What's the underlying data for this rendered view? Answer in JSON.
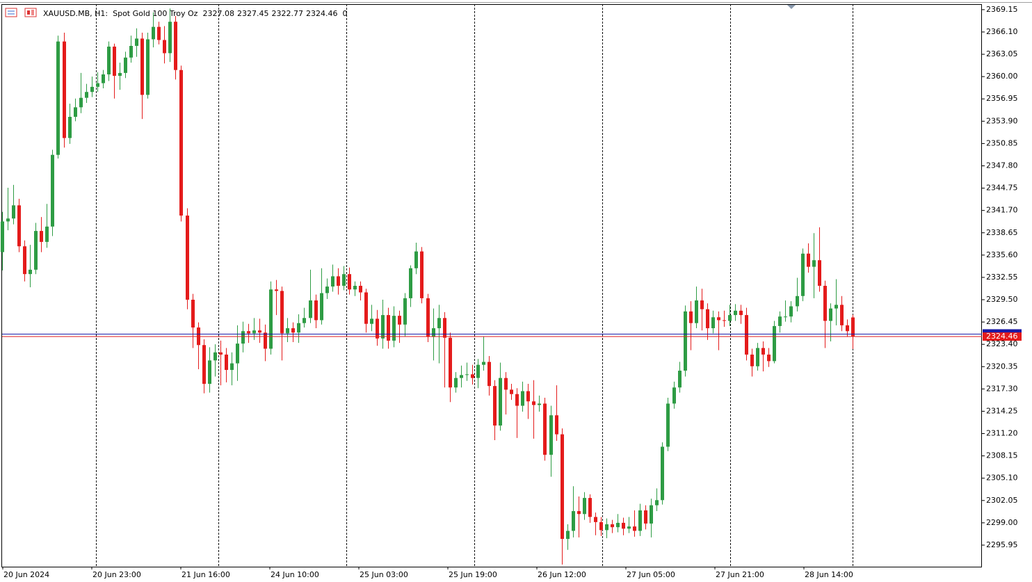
{
  "chart_data": {
    "type": "candlestick",
    "symbol": "XAUUSD.MB, H1:  Spot Gold 100 Troy Oz",
    "spread": 0,
    "up_color": "#2e9c44",
    "down_color": "#e41b1b",
    "bid": 2324.46,
    "bid_color": "#e41b1b",
    "ask": 2324.8,
    "ask_color": "#1a1aa6",
    "ylim": [
      2293.0,
      2369.9
    ],
    "yticks": [
      2369.15,
      {
        "value": 2366.1,
        "label": "2366.10"
      },
      2363.05,
      {
        "value": 2360,
        "label": "2360.00"
      },
      2356.95,
      {
        "value": 2353.9,
        "label": "2353.90"
      },
      2350.85,
      {
        "value": 2347.8,
        "label": "2347.80"
      },
      2344.75,
      {
        "value": 2341.7,
        "label": "2341.70"
      },
      2338.65,
      {
        "value": 2335.6,
        "label": "2335.60"
      },
      2332.55,
      {
        "value": 2329.5,
        "label": "2329.50"
      },
      2326.45,
      {
        "value": 2323.4,
        "label": "2323.40"
      },
      2320.35,
      {
        "value": 2317.3,
        "label": "2317.30"
      },
      2314.25,
      {
        "value": 2311.2,
        "label": "2311.20"
      },
      2308.15,
      {
        "value": 2305.1,
        "label": "2305.10"
      },
      2302.05,
      {
        "value": 2299,
        "label": "2299.00"
      },
      2295.95
    ],
    "xlabels": [
      "20 Jun 2024",
      "20 Jun 23:00",
      "21 Jun 16:00",
      "24 Jun 10:00",
      "25 Jun 03:00",
      "25 Jun 19:00",
      "26 Jun 12:00",
      "27 Jun 05:00",
      "27 Jun 21:00",
      "28 Jun 14:00"
    ],
    "open": [
      2336.0,
      2340.2,
      2340.6,
      2342.4,
      2336.8,
      2333.0,
      2333.6,
      2338.9,
      2337.4,
      2339.5,
      2349.3,
      2364.8,
      2351.6,
      2354.5,
      2355.8,
      2357.1,
      2357.9,
      2358.6,
      2359.1,
      2360.3,
      2364.1,
      2360.1,
      2360.5,
      2362.6,
      2364.2,
      2365.2,
      2357.5,
      2365.1,
      2366.8,
      2365.0,
      2363.2,
      2367.5,
      2360.9,
      2341.0,
      2329.5,
      2325.7,
      2323.3,
      2318.0,
      2321.2,
      2322.3,
      2322.0,
      2319.9,
      2320.8,
      2323.5,
      2325.2,
      2324.9,
      2325.3,
      2325.0,
      2322.8,
      2330.9,
      2330.7,
      2324.9,
      2325.6,
      2325.0,
      2326.3,
      2327.0,
      2329.4,
      2326.7,
      2330.4,
      2331.3,
      2332.7,
      2331.4,
      2333.0,
      2330.9,
      2331.4,
      2330.5,
      2326.2,
      2326.9,
      2324.2,
      2327.4,
      2323.9,
      2327.3,
      2326.1,
      2329.7,
      2333.8,
      2336.1,
      2329.7,
      2324.4,
      2325.6,
      2327.0,
      2324.3,
      2317.5,
      2318.8,
      2319.2,
      2319.3,
      2318.8,
      2320.6,
      2321.0,
      2317.7,
      2312.3,
      2318.8,
      2317.2,
      2316.6,
      2315.0,
      2317.0,
      2315.6,
      2315.1,
      2315.3,
      2308.3,
      2313.7,
      2311.1,
      2296.8,
      2297.9,
      2300.6,
      2300.2,
      2302.4,
      2299.8,
      2299.1,
      2298.0,
      2298.8,
      2298.4,
      2299.0,
      2298.2,
      2298.5,
      2297.9,
      2300.7,
      2298.9,
      2301.4,
      2302.1,
      2309.4,
      2315.3,
      2317.5,
      2319.8,
      2327.9,
      2326.3,
      2329.4,
      2328.2,
      2325.6,
      2327.1,
      2326.7,
      2326.6,
      2327.4,
      2328.0,
      2327.4,
      2322.0,
      2320.4,
      2322.9,
      2322.0,
      2321.1,
      2325.9,
      2327.2,
      2327.2,
      2328.6,
      2330.0,
      2335.8,
      2334.0,
      2334.9,
      2331.4,
      2326.6,
      2328.3,
      2328.8,
      2326.0,
      2327.08
    ],
    "high": [
      2341.5,
      2344.8,
      2345.2,
      2343.3,
      2337.6,
      2337.0,
      2340.0,
      2340.8,
      2342.6,
      2350.0,
      2365.6,
      2366.0,
      2356.3,
      2357.0,
      2360.5,
      2359.0,
      2360.0,
      2360.6,
      2360.9,
      2364.8,
      2364.5,
      2361.9,
      2363.4,
      2365.6,
      2366.6,
      2366.0,
      2366.0,
      2368.8,
      2367.5,
      2366.9,
      2369.3,
      2368.3,
      2361.5,
      2342.0,
      2330.3,
      2326.4,
      2324.1,
      2323.0,
      2323.4,
      2323.9,
      2322.9,
      2322.3,
      2326.0,
      2326.5,
      2326.2,
      2327.0,
      2326.9,
      2326.1,
      2332.0,
      2332.2,
      2331.3,
      2327.0,
      2326.4,
      2327.5,
      2328.4,
      2333.6,
      2330.2,
      2333.8,
      2332.4,
      2334.3,
      2333.8,
      2334.1,
      2333.9,
      2332.0,
      2332.0,
      2331.0,
      2328.8,
      2328.1,
      2329.5,
      2328.4,
      2328.6,
      2328.0,
      2330.4,
      2334.2,
      2337.3,
      2336.7,
      2330.3,
      2328.3,
      2328.8,
      2327.8,
      2325.0,
      2319.6,
      2320.5,
      2320.9,
      2320.6,
      2321.4,
      2324.5,
      2321.8,
      2318.5,
      2320.9,
      2319.6,
      2318.0,
      2317.4,
      2318.3,
      2318.0,
      2318.5,
      2316.4,
      2316.1,
      2315.0,
      2317.8,
      2311.9,
      2298.8,
      2304.0,
      2302.6,
      2303.2,
      2302.9,
      2300.4,
      2299.8,
      2299.6,
      2299.4,
      2300.2,
      2299.7,
      2299.8,
      2300.7,
      2301.6,
      2301.4,
      2302.3,
      2303.7,
      2310.0,
      2316.1,
      2318.3,
      2321.0,
      2328.7,
      2329.3,
      2331.3,
      2331.0,
      2329.0,
      2328.0,
      2327.9,
      2328.0,
      2328.8,
      2328.9,
      2328.8,
      2328.4,
      2322.8,
      2323.6,
      2323.8,
      2322.9,
      2326.6,
      2327.9,
      2329.4,
      2329.3,
      2332.5,
      2336.5,
      2337.2,
      2338.6,
      2339.4,
      2332.1,
      2329.0,
      2332.3,
      2330.0,
      2326.8,
      2327.45
    ],
    "low": [
      2333.5,
      2339.0,
      2339.8,
      2336.0,
      2332.0,
      2331.2,
      2333.0,
      2336.0,
      2336.6,
      2338.2,
      2348.8,
      2350.3,
      2350.8,
      2353.9,
      2355.0,
      2356.4,
      2357.2,
      2357.9,
      2358.4,
      2359.4,
      2357.0,
      2358.2,
      2359.8,
      2361.9,
      2362.7,
      2354.2,
      2357.0,
      2364.0,
      2364.4,
      2361.8,
      2362.0,
      2359.6,
      2340.2,
      2328.2,
      2322.9,
      2320.0,
      2316.7,
      2316.8,
      2319.0,
      2317.8,
      2318.2,
      2317.8,
      2318.4,
      2322.3,
      2323.6,
      2324.0,
      2323.6,
      2321.1,
      2322.0,
      2327.4,
      2321.2,
      2323.7,
      2323.7,
      2323.6,
      2325.7,
      2326.3,
      2325.6,
      2326.1,
      2329.6,
      2330.6,
      2330.2,
      2330.8,
      2330.2,
      2330.0,
      2329.4,
      2325.0,
      2325.2,
      2323.2,
      2322.8,
      2322.8,
      2323.0,
      2323.6,
      2324.5,
      2328.5,
      2333.0,
      2329.0,
      2323.7,
      2321.2,
      2320.8,
      2317.5,
      2315.5,
      2316.8,
      2317.5,
      2318.4,
      2317.9,
      2317.4,
      2319.8,
      2316.4,
      2310.3,
      2311.6,
      2313.8,
      2315.8,
      2310.6,
      2314.2,
      2313.2,
      2310.5,
      2314.2,
      2307.5,
      2305.3,
      2310.2,
      2293.3,
      2295.3,
      2297.0,
      2297.0,
      2299.4,
      2299.0,
      2297.3,
      2297.2,
      2296.9,
      2297.6,
      2297.7,
      2297.3,
      2297.6,
      2297.1,
      2297.2,
      2298.1,
      2297.0,
      2300.6,
      2301.5,
      2308.8,
      2314.6,
      2316.8,
      2319.0,
      2322.6,
      2325.6,
      2325.3,
      2324.0,
      2324.9,
      2322.6,
      2325.8,
      2325.9,
      2326.6,
      2326.2,
      2321.2,
      2319.0,
      2319.8,
      2319.7,
      2320.3,
      2320.8,
      2325.0,
      2326.5,
      2326.4,
      2327.9,
      2329.3,
      2333.2,
      2329.7,
      2330.6,
      2322.9,
      2323.8,
      2326.0,
      2325.2,
      2324.4,
      2322.77
    ],
    "close": [
      2340.2,
      2340.6,
      2342.4,
      2336.8,
      2333.0,
      2333.6,
      2338.9,
      2337.4,
      2339.5,
      2349.3,
      2364.8,
      2351.6,
      2354.5,
      2355.8,
      2357.1,
      2357.9,
      2358.6,
      2359.1,
      2360.3,
      2364.1,
      2360.1,
      2360.5,
      2362.6,
      2364.2,
      2365.2,
      2357.5,
      2365.1,
      2366.8,
      2365.0,
      2363.2,
      2367.5,
      2360.9,
      2341.0,
      2329.5,
      2325.7,
      2323.3,
      2318.0,
      2321.2,
      2322.3,
      2322.0,
      2319.9,
      2320.8,
      2323.5,
      2325.2,
      2324.9,
      2325.3,
      2325.0,
      2322.8,
      2330.9,
      2330.7,
      2324.9,
      2325.6,
      2325.0,
      2326.3,
      2327.0,
      2329.4,
      2326.7,
      2330.4,
      2331.3,
      2332.7,
      2331.4,
      2333.0,
      2330.9,
      2331.4,
      2330.5,
      2326.2,
      2326.9,
      2324.2,
      2327.4,
      2323.9,
      2327.3,
      2326.1,
      2329.7,
      2333.8,
      2336.1,
      2329.7,
      2324.4,
      2325.6,
      2327.0,
      2324.3,
      2317.5,
      2318.8,
      2319.2,
      2319.3,
      2318.8,
      2320.6,
      2321.0,
      2317.7,
      2312.3,
      2318.8,
      2317.2,
      2316.6,
      2315.0,
      2317.0,
      2315.6,
      2315.1,
      2315.3,
      2308.3,
      2313.7,
      2311.1,
      2296.8,
      2297.9,
      2300.6,
      2300.2,
      2302.4,
      2299.8,
      2299.1,
      2298.0,
      2298.8,
      2298.4,
      2299.0,
      2298.2,
      2298.5,
      2297.9,
      2300.7,
      2298.9,
      2301.4,
      2302.1,
      2309.4,
      2315.3,
      2317.5,
      2319.8,
      2327.9,
      2326.3,
      2329.4,
      2328.2,
      2325.6,
      2327.1,
      2326.7,
      2326.6,
      2327.4,
      2328.0,
      2327.4,
      2322.0,
      2320.4,
      2322.9,
      2322.0,
      2321.1,
      2325.9,
      2327.2,
      2327.2,
      2328.6,
      2330.0,
      2335.8,
      2334.0,
      2334.9,
      2331.4,
      2326.6,
      2328.3,
      2328.8,
      2326.0,
      2325.2,
      2324.46
    ]
  }
}
